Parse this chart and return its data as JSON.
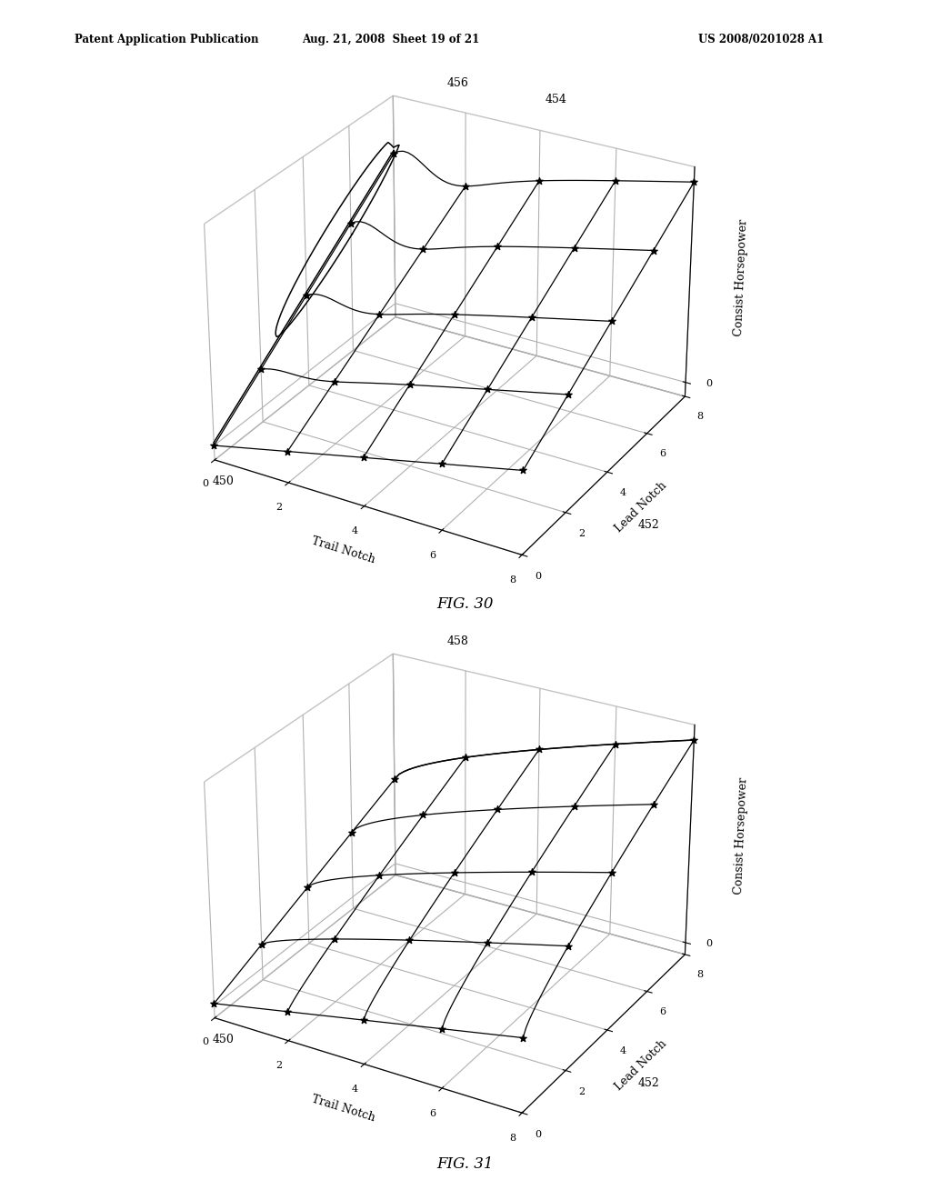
{
  "header_left": "Patent Application Publication",
  "header_mid": "Aug. 21, 2008  Sheet 19 of 21",
  "header_right": "US 2008/0201028 A1",
  "fig30_label": "FIG. 30",
  "fig31_label": "FIG. 31",
  "label_450": "450",
  "label_452": "452",
  "label_454": "454",
  "label_456": "456",
  "label_458": "458",
  "xlabel_trail": "Trail Notch",
  "ylabel_lead": "Lead Notch",
  "zlabel": "Consist Horsepower",
  "axis_ticks": [
    0,
    2,
    4,
    6,
    8
  ],
  "background_color": "#ffffff",
  "line_color": "#000000",
  "elev": 28,
  "azim": -60
}
